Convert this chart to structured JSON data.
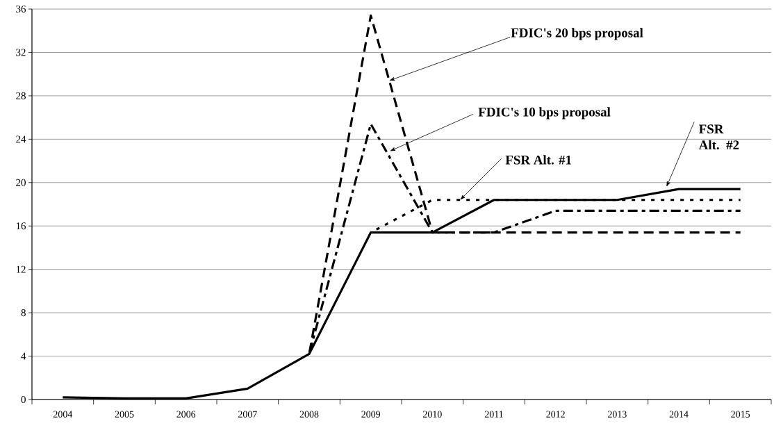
{
  "chart_data": {
    "type": "line",
    "categories": [
      "2004",
      "2005",
      "2006",
      "2007",
      "2008",
      "2009",
      "2010",
      "2011",
      "2012",
      "2013",
      "2014",
      "2015"
    ],
    "series": [
      {
        "color": "#000000",
        "line_style": "dashed",
        "values": [
          null,
          null,
          null,
          null,
          4.2,
          35.4,
          15.4,
          15.4,
          15.4,
          15.4,
          15.4,
          15.4
        ]
      },
      {
        "color": "#000000",
        "line_style": "dashdot",
        "values": [
          null,
          null,
          null,
          null,
          4.2,
          25.4,
          15.4,
          15.4,
          17.4,
          17.4,
          17.4,
          17.4
        ]
      },
      {
        "color": "#000000",
        "line_style": "dotted",
        "values": [
          null,
          null,
          null,
          null,
          null,
          15.4,
          18.4,
          18.4,
          18.4,
          18.4,
          18.4,
          18.4
        ]
      },
      {
        "color": "#000000",
        "line_style": "solid",
        "values": [
          0.2,
          0.1,
          0.1,
          1.0,
          4.2,
          15.4,
          15.4,
          18.4,
          18.4,
          18.4,
          19.4,
          19.4
        ]
      }
    ],
    "ylim": [
      0,
      36
    ],
    "yticks": [
      0,
      4,
      8,
      12,
      16,
      20,
      24,
      28,
      32,
      36
    ],
    "grid": "y",
    "marker": "none",
    "annotations": [
      "FDIC's 20 bps proposal",
      "FDIC's 10 bps proposal",
      {
        "text": "FSR Alt. #1",
        "y": 18.4
      },
      "FSR Alt. #2"
    ]
  }
}
